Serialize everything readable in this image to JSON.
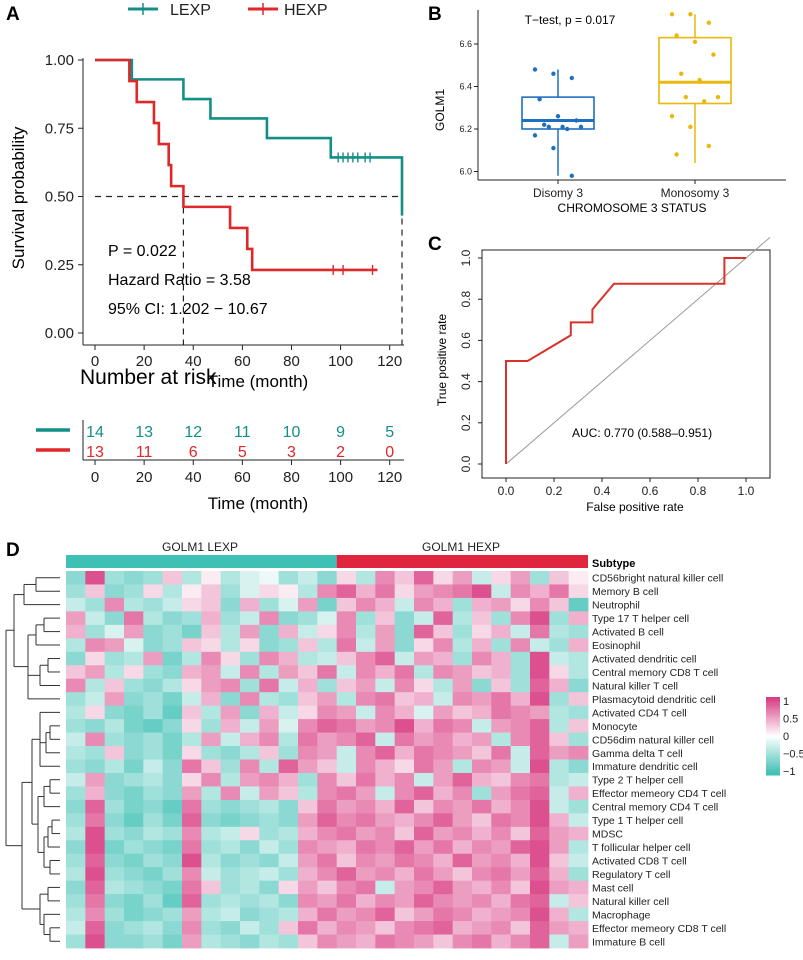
{
  "panels": {
    "a": "A",
    "b": "B",
    "c": "C",
    "d": "D"
  },
  "colors": {
    "lexp": "#148f86",
    "hexp": "#e0272a",
    "boxB1": "#1f6fbf",
    "boxB2": "#e8b80c",
    "roc": "#d9322a",
    "hm_low": "#3ec0b4",
    "hm_mid": "#ffffff",
    "hm_high": "#d83c82",
    "anno_lexp": "#3ec0b4",
    "anno_hexp": "#e0263f"
  },
  "legendA": {
    "lexp": "LEXP",
    "hexp": "HEXP"
  },
  "chart_data": [
    {
      "id": "A",
      "type": "line",
      "subtype": "kaplan-meier",
      "xlabel": "Time (month)",
      "ylabel": "Survival probability",
      "xlim": [
        0,
        125
      ],
      "ylim": [
        0,
        1
      ],
      "xticks": [
        "0",
        "20",
        "40",
        "60",
        "80",
        "100",
        "120"
      ],
      "yticks": [
        "0.00",
        "0.25",
        "0.50",
        "0.75",
        "1.00"
      ],
      "series": [
        {
          "name": "LEXP",
          "steps": [
            [
              0,
              1.0
            ],
            [
              15,
              0.929
            ],
            [
              36,
              0.857
            ],
            [
              47,
              0.786
            ],
            [
              70,
              0.714
            ],
            [
              96,
              0.643
            ],
            [
              125,
              0.643
            ],
            [
              125,
              0.43
            ]
          ],
          "censor": [
            99,
            101,
            103,
            105,
            107,
            110,
            112
          ]
        },
        {
          "name": "HEXP",
          "steps": [
            [
              0,
              1.0
            ],
            [
              14,
              0.923
            ],
            [
              17,
              0.846
            ],
            [
              24,
              0.769
            ],
            [
              26,
              0.692
            ],
            [
              30,
              0.615
            ],
            [
              31,
              0.538
            ],
            [
              36,
              0.462
            ],
            [
              55,
              0.385
            ],
            [
              62,
              0.308
            ],
            [
              64,
              0.231
            ],
            [
              115,
              0.231
            ]
          ],
          "censor": [
            97,
            101,
            113
          ]
        }
      ],
      "median_line": {
        "y": 0.5,
        "x_hexp": 36,
        "x_lexp": 125
      },
      "annotations": {
        "p": "P = 0.022",
        "hr": "Hazard Ratio = 3.58",
        "ci": "95% CI: 1.202 − 10.67"
      }
    },
    {
      "id": "A-risk",
      "type": "table",
      "title": "Number at risk",
      "xlabel": "Time (month)",
      "xticks": [
        "0",
        "20",
        "40",
        "60",
        "80",
        "100",
        "120"
      ],
      "rows": [
        {
          "name": "LEXP",
          "values": [
            "14",
            "13",
            "12",
            "11",
            "10",
            "9",
            "5"
          ]
        },
        {
          "name": "HEXP",
          "values": [
            "13",
            "11",
            "6",
            "5",
            "3",
            "2",
            "0"
          ]
        }
      ]
    },
    {
      "id": "B",
      "type": "box",
      "title": "T−test, p = 0.017",
      "xlabel": "CHROMOSOME 3 STATUS",
      "ylabel": "GOLM1",
      "ylim": [
        5.96,
        6.76
      ],
      "yticks": [
        "6.0",
        "6.2",
        "6.4",
        "6.6"
      ],
      "categories": [
        "Disomy 3",
        "Monosomy 3"
      ],
      "boxes": [
        {
          "min": 5.98,
          "q1": 6.2,
          "median": 6.24,
          "q3": 6.35,
          "max": 6.48,
          "points": [
            6.48,
            6.46,
            6.44,
            6.34,
            6.26,
            6.24,
            6.22,
            6.21,
            6.21,
            6.21,
            6.2,
            6.17,
            6.11,
            5.98
          ]
        },
        {
          "min": 6.04,
          "q1": 6.32,
          "median": 6.42,
          "q3": 6.63,
          "max": 6.74,
          "points": [
            6.74,
            6.74,
            6.7,
            6.64,
            6.61,
            6.55,
            6.46,
            6.43,
            6.35,
            6.35,
            6.33,
            6.26,
            6.21,
            6.12,
            6.08
          ]
        }
      ]
    },
    {
      "id": "C",
      "type": "line",
      "subtype": "roc",
      "xlabel": "False positive rate",
      "ylabel": "True positive rate",
      "xlim": [
        -0.1,
        1.1
      ],
      "ylim": [
        0,
        1
      ],
      "xticks": [
        "0.0",
        "0.2",
        "0.4",
        "0.6",
        "0.8",
        "1.0"
      ],
      "yticks": [
        "0.0",
        "0.2",
        "0.4",
        "0.6",
        "0.8",
        "1.0"
      ],
      "points": [
        [
          0,
          0
        ],
        [
          0,
          0.5
        ],
        [
          0.09,
          0.5
        ],
        [
          0.27,
          0.625
        ],
        [
          0.27,
          0.6875
        ],
        [
          0.36,
          0.6875
        ],
        [
          0.36,
          0.75
        ],
        [
          0.45,
          0.875
        ],
        [
          0.91,
          0.875
        ],
        [
          0.91,
          1.0
        ],
        [
          1.0,
          1.0
        ]
      ],
      "annotation": "AUC: 0.770 (0.588–0.951)"
    },
    {
      "id": "D",
      "type": "heatmap",
      "subtype_label": "Subtype",
      "groups": [
        {
          "label": "GOLM1 LEXP",
          "n": 14
        },
        {
          "label": "GOLM1 HEXP",
          "n": 13
        }
      ],
      "scale": {
        "ticks": [
          "1",
          "0.5",
          "0",
          "−0.5",
          "−1"
        ],
        "min": -1,
        "max": 1
      },
      "rows": [
        "CD56bright natural killer cell",
        "Memory B cell",
        "Neutrophil",
        "Type 17 T helper cell",
        "Activated B cell",
        "Eosinophil",
        "Activated dendritic cell",
        "Central memory CD8 T cell",
        "Natural killer T cell",
        "Plasmacytoid dendritic cell",
        "Activated CD4 T cell",
        "Monocyte",
        "CD56dim natural killer cell",
        "Gamma delta T cell",
        "Immature dendritic cell",
        "Type 2 T helper cell",
        "Effector memeory CD4 T cell",
        "Central memory CD4 T cell",
        "Type 1 T helper cell",
        "MDSC",
        "T follicular helper cell",
        "Activated CD8 T cell",
        "Regulatory T cell",
        "Mast cell",
        "Natural killer cell",
        "Macrophage",
        "Effector memeory CD8 T cell",
        "Immature  B cell"
      ],
      "values": [
        [
          -0.6,
          0.9,
          -0.5,
          -0.6,
          -0.5,
          0.3,
          -0.4,
          0.1,
          -0.4,
          -0.2,
          -0.1,
          -0.5,
          -0.3,
          -0.6,
          0.2,
          -0.4,
          0.6,
          0.3,
          0.8,
          0.2,
          0.5,
          -0.3,
          0.2,
          0.5,
          -0.5,
          0.3,
          0.1
        ],
        [
          -0.5,
          0.3,
          -0.6,
          -0.5,
          0.2,
          -0.4,
          0.1,
          0.3,
          -0.5,
          -0.2,
          0.2,
          0.1,
          -0.4,
          0.6,
          0.8,
          0.4,
          0.7,
          0.2,
          0.5,
          0.6,
          0.7,
          0.9,
          -0.3,
          0.6,
          0.4,
          0.7,
          0.2
        ],
        [
          -0.3,
          -0.5,
          0.6,
          -0.4,
          -0.5,
          -0.3,
          0.2,
          0.3,
          -0.6,
          0.4,
          -0.5,
          -0.2,
          0.5,
          -0.7,
          0.3,
          0.6,
          0.4,
          -0.3,
          0.6,
          0.4,
          -0.5,
          0.4,
          0.5,
          0.2,
          0.6,
          0.3,
          -0.8
        ],
        [
          0.5,
          -0.3,
          -0.6,
          0.7,
          -0.4,
          -0.6,
          -0.5,
          0.4,
          -0.5,
          -0.3,
          0.6,
          -0.6,
          -0.5,
          -0.2,
          0.6,
          -0.5,
          0.3,
          -0.6,
          -0.3,
          0.8,
          -0.4,
          0.3,
          -0.5,
          0.6,
          0.9,
          -0.5,
          0.4
        ],
        [
          0.4,
          -0.5,
          -0.2,
          0.5,
          -0.6,
          -0.5,
          -0.7,
          0.3,
          -0.4,
          0.5,
          -0.6,
          0.4,
          -0.3,
          0.2,
          0.6,
          -0.4,
          0.5,
          -0.6,
          0.8,
          0.3,
          -0.5,
          0.2,
          0.4,
          -0.3,
          0.7,
          -0.4,
          -0.5
        ],
        [
          -0.4,
          0.6,
          0.5,
          -0.2,
          -0.6,
          -0.5,
          0.3,
          0.2,
          -0.4,
          0.2,
          -0.6,
          -0.5,
          0.3,
          -0.4,
          0.7,
          -0.3,
          0.5,
          -0.6,
          0.2,
          0.6,
          -0.4,
          0.4,
          -0.5,
          0.6,
          -0.3,
          -0.5,
          0.4
        ],
        [
          -0.6,
          0.2,
          -0.5,
          -0.4,
          0.5,
          -0.7,
          -0.4,
          0.6,
          0.2,
          -0.5,
          0.6,
          0.4,
          -0.4,
          -0.3,
          0.3,
          0.6,
          0.8,
          -0.3,
          0.5,
          0.4,
          -0.5,
          0.6,
          0.4,
          -0.5,
          0.9,
          -0.3,
          -0.4
        ],
        [
          0.3,
          0.5,
          -0.4,
          0.2,
          -0.5,
          -0.6,
          0.4,
          0.5,
          -0.3,
          0.6,
          -0.4,
          0.5,
          0.3,
          0.7,
          -0.3,
          0.6,
          0.4,
          0.7,
          -0.4,
          0.6,
          0.5,
          0.3,
          0.4,
          -0.5,
          0.9,
          0.2,
          -0.4
        ],
        [
          0.6,
          -0.4,
          0.3,
          -0.5,
          -0.6,
          -0.4,
          0.2,
          0.5,
          0.6,
          -0.5,
          0.7,
          -0.3,
          0.4,
          -0.5,
          0.3,
          0.5,
          -0.3,
          0.6,
          0.2,
          -0.4,
          0.5,
          -0.6,
          0.3,
          -0.5,
          0.8,
          0.4,
          -0.6
        ],
        [
          -0.5,
          -0.3,
          0.5,
          -0.6,
          -0.5,
          -0.7,
          -0.3,
          0.4,
          -0.6,
          0.6,
          -0.4,
          -0.5,
          0.3,
          0.5,
          -0.4,
          0.6,
          0.7,
          0.3,
          0.4,
          -0.3,
          0.6,
          0.5,
          0.7,
          0.4,
          0.9,
          -0.5,
          0.3
        ],
        [
          -0.4,
          0.2,
          -0.6,
          -0.7,
          -0.5,
          -0.8,
          0.3,
          -0.4,
          0.5,
          -0.6,
          0.4,
          -0.3,
          0.2,
          0.6,
          0.5,
          -0.3,
          0.6,
          0.4,
          -0.2,
          0.5,
          0.3,
          0.4,
          0.7,
          0.6,
          0.5,
          -0.4,
          -0.5
        ],
        [
          -0.5,
          -0.6,
          -0.4,
          -0.7,
          -0.8,
          -0.6,
          0.2,
          -0.5,
          0.4,
          -0.3,
          0.5,
          -0.2,
          0.6,
          0.8,
          0.7,
          0.5,
          0.6,
          0.9,
          0.4,
          0.7,
          0.6,
          -0.3,
          0.5,
          0.6,
          0.8,
          -0.4,
          0.3
        ],
        [
          -0.3,
          0.6,
          -0.5,
          -0.6,
          -0.5,
          -0.7,
          -0.4,
          0.5,
          -0.3,
          0.4,
          0.6,
          -0.4,
          0.7,
          0.5,
          0.6,
          0.8,
          -0.3,
          0.7,
          0.5,
          0.6,
          0.4,
          0.5,
          -0.4,
          0.6,
          0.8,
          0.3,
          -0.5
        ],
        [
          -0.4,
          -0.5,
          0.3,
          -0.6,
          -0.5,
          -0.7,
          0.2,
          -0.5,
          -0.6,
          -0.4,
          0.3,
          -0.5,
          0.6,
          0.5,
          -0.3,
          0.6,
          0.8,
          0.4,
          0.7,
          0.6,
          0.5,
          0.3,
          0.7,
          -0.3,
          0.8,
          0.5,
          0.6
        ],
        [
          -0.5,
          -0.6,
          -0.4,
          -0.7,
          -0.3,
          -0.6,
          0.7,
          0.3,
          -0.5,
          0.6,
          -0.4,
          0.8,
          0.5,
          0.3,
          -0.3,
          0.6,
          0.4,
          0.2,
          0.7,
          0.5,
          -0.4,
          0.6,
          0.5,
          -0.3,
          0.9,
          -0.4,
          -0.6
        ],
        [
          -0.3,
          0.5,
          -0.6,
          -0.5,
          -0.4,
          -0.6,
          0.2,
          0.6,
          -0.4,
          0.5,
          0.6,
          0.4,
          -0.5,
          0.6,
          0.3,
          0.7,
          0.4,
          0.6,
          -0.3,
          0.5,
          0.8,
          0.4,
          0.3,
          0.6,
          0.7,
          -0.4,
          -0.3
        ],
        [
          -0.5,
          0.4,
          -0.6,
          -0.7,
          -0.5,
          -0.6,
          0.5,
          -0.4,
          0.6,
          -0.3,
          0.5,
          0.3,
          -0.4,
          0.6,
          0.7,
          0.5,
          -0.3,
          0.6,
          0.8,
          0.4,
          0.6,
          -0.5,
          0.5,
          0.7,
          0.8,
          -0.3,
          0.4
        ],
        [
          -0.6,
          0.8,
          -0.5,
          -0.7,
          -0.6,
          -0.8,
          0.7,
          -0.5,
          -0.6,
          -0.5,
          -0.4,
          -0.6,
          0.3,
          0.7,
          0.5,
          0.6,
          0.4,
          0.8,
          0.3,
          0.6,
          0.5,
          0.7,
          0.4,
          0.6,
          0.9,
          -0.3,
          -0.5
        ],
        [
          -0.5,
          0.7,
          -0.6,
          -0.8,
          -0.5,
          -0.7,
          0.8,
          -0.6,
          -0.7,
          -0.6,
          -0.5,
          -0.6,
          0.5,
          0.8,
          0.6,
          0.7,
          0.5,
          0.4,
          0.6,
          0.8,
          0.5,
          0.3,
          0.7,
          0.6,
          0.9,
          0.4,
          -0.3
        ],
        [
          -0.4,
          0.9,
          -0.5,
          -0.6,
          -0.4,
          -0.5,
          0.6,
          -0.4,
          -0.3,
          0.2,
          -0.5,
          -0.4,
          0.4,
          0.6,
          0.7,
          0.5,
          0.6,
          0.3,
          0.8,
          0.5,
          0.6,
          0.4,
          0.6,
          0.3,
          0.8,
          0.5,
          0.4
        ],
        [
          -0.6,
          0.9,
          -0.7,
          -0.5,
          -0.6,
          -0.7,
          0.7,
          -0.5,
          -0.4,
          -0.6,
          -0.3,
          -0.5,
          0.6,
          0.5,
          0.4,
          0.7,
          0.6,
          0.8,
          0.5,
          0.7,
          0.4,
          0.6,
          0.5,
          0.8,
          0.9,
          0.5,
          -0.4
        ],
        [
          -0.5,
          0.8,
          -0.6,
          -0.7,
          -0.5,
          -0.6,
          0.9,
          -0.4,
          -0.6,
          -0.5,
          -0.6,
          -0.3,
          0.5,
          0.7,
          0.3,
          0.6,
          0.5,
          0.7,
          0.6,
          0.4,
          0.8,
          0.5,
          0.6,
          0.4,
          0.9,
          0.3,
          -0.3
        ],
        [
          -0.4,
          0.9,
          -0.5,
          -0.6,
          -0.7,
          -0.5,
          0.6,
          -0.3,
          -0.5,
          -0.4,
          -0.3,
          -0.5,
          0.4,
          0.6,
          0.8,
          0.5,
          0.6,
          0.4,
          0.7,
          0.5,
          0.3,
          0.6,
          0.7,
          0.5,
          0.8,
          0.4,
          -0.5
        ],
        [
          -0.6,
          0.8,
          -0.4,
          -0.5,
          -0.6,
          -0.7,
          0.7,
          0.3,
          -0.5,
          -0.4,
          -0.6,
          0.2,
          0.5,
          0.3,
          0.6,
          0.7,
          -0.3,
          0.5,
          0.6,
          0.8,
          0.5,
          0.4,
          0.6,
          0.3,
          0.9,
          0.5,
          0.4
        ],
        [
          -0.5,
          0.7,
          -0.6,
          -0.7,
          -0.5,
          -0.8,
          0.8,
          -0.5,
          -0.4,
          -0.5,
          -0.4,
          -0.6,
          0.6,
          0.5,
          0.7,
          0.4,
          0.6,
          0.5,
          0.8,
          0.6,
          0.5,
          0.6,
          0.4,
          0.7,
          0.8,
          -0.3,
          0.3
        ],
        [
          -0.4,
          0.6,
          -0.5,
          -0.7,
          -0.6,
          -0.5,
          0.5,
          -0.4,
          -0.3,
          -0.6,
          -0.5,
          -0.4,
          0.4,
          0.7,
          0.5,
          0.6,
          0.8,
          0.3,
          0.5,
          0.7,
          0.6,
          0.4,
          0.5,
          0.6,
          0.9,
          0.4,
          -0.4
        ],
        [
          -0.3,
          0.8,
          -0.6,
          -0.5,
          -0.4,
          -0.6,
          0.6,
          -0.5,
          -0.6,
          -0.3,
          -0.5,
          0.3,
          0.7,
          0.4,
          0.6,
          0.5,
          0.3,
          0.6,
          0.7,
          0.8,
          0.4,
          0.5,
          0.6,
          0.3,
          0.8,
          0.5,
          0.4
        ],
        [
          -0.5,
          0.9,
          -0.6,
          -0.6,
          -0.5,
          -0.7,
          0.5,
          -0.4,
          -0.5,
          -0.6,
          -0.4,
          -0.5,
          0.3,
          0.6,
          0.5,
          0.4,
          0.7,
          0.6,
          0.5,
          0.3,
          0.6,
          0.7,
          0.4,
          0.6,
          0.8,
          -0.3,
          0.5
        ]
      ]
    }
  ]
}
